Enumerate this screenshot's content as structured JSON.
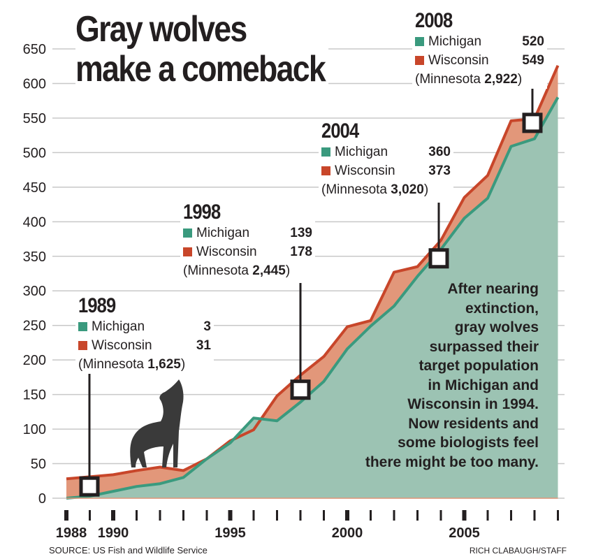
{
  "title": [
    "Gray wolves",
    "make a comeback"
  ],
  "colors": {
    "michigan": "#3a9a7e",
    "michigan_fill": "#9cc3b3",
    "wisconsin": "#c8462a",
    "wisconsin_fill": "#e2977a"
  },
  "callouts": [
    {
      "year": "1989",
      "michigan_label": "Michigan",
      "michigan": "3",
      "wisconsin_label": "Wisconsin",
      "wisconsin": "31",
      "minnesota_prefix": "(Minnesota ",
      "minnesota": "1,625",
      "minnesota_suffix": ")"
    },
    {
      "year": "1998",
      "michigan_label": "Michigan",
      "michigan": "139",
      "wisconsin_label": "Wisconsin",
      "wisconsin": "178",
      "minnesota_prefix": "(Minnesota ",
      "minnesota": "2,445",
      "minnesota_suffix": ")"
    },
    {
      "year": "2004",
      "michigan_label": "Michigan",
      "michigan": "360",
      "wisconsin_label": "Wisconsin",
      "wisconsin": "373",
      "minnesota_prefix": "(Minnesota ",
      "minnesota": "3,020",
      "minnesota_suffix": ")"
    },
    {
      "year": "2008",
      "michigan_label": "Michigan",
      "michigan": "520",
      "wisconsin_label": "Wisconsin",
      "wisconsin": "549",
      "minnesota_prefix": "(Minnesota ",
      "minnesota": "2,922",
      "minnesota_suffix": ")"
    }
  ],
  "note": [
    "After nearing",
    "extinction,",
    "gray wolves",
    "surpassed their",
    "target population",
    "in Michigan and",
    "Wisconsin in 1994.",
    "Now residents and",
    "some biologists feel",
    "there might be too many."
  ],
  "source": "SOURCE: US Fish and Wildlife Service",
  "credit": "RICH CLABAUGH/STAFF",
  "chart_data": {
    "type": "area",
    "title": "Gray wolves make a comeback",
    "xlabel": "",
    "ylabel": "",
    "x": [
      1988,
      1989,
      1990,
      1991,
      1992,
      1993,
      1994,
      1995,
      1996,
      1997,
      1998,
      1999,
      2000,
      2001,
      2002,
      2003,
      2004,
      2005,
      2006,
      2007,
      2008,
      2009
    ],
    "series": [
      {
        "name": "Wisconsin",
        "values": [
          28,
          31,
          34,
          40,
          45,
          40,
          57,
          83,
          99,
          148,
          178,
          205,
          248,
          257,
          327,
          335,
          373,
          435,
          467,
          546,
          549,
          626
        ]
      },
      {
        "name": "Michigan",
        "values": [
          0,
          3,
          10,
          17,
          21,
          30,
          57,
          80,
          116,
          112,
          139,
          169,
          216,
          249,
          278,
          321,
          360,
          405,
          434,
          509,
          520,
          580
        ]
      }
    ],
    "highlight_years": [
      1989,
      1998,
      2004,
      2008
    ],
    "yticks": [
      0,
      50,
      100,
      150,
      200,
      250,
      300,
      350,
      400,
      450,
      500,
      550,
      600,
      650
    ],
    "xtick_labels": [
      "1988",
      "1990",
      "1995",
      "2000",
      "2005"
    ],
    "xlim": [
      1988,
      2009
    ],
    "ylim": [
      0,
      650
    ],
    "grid": true
  }
}
